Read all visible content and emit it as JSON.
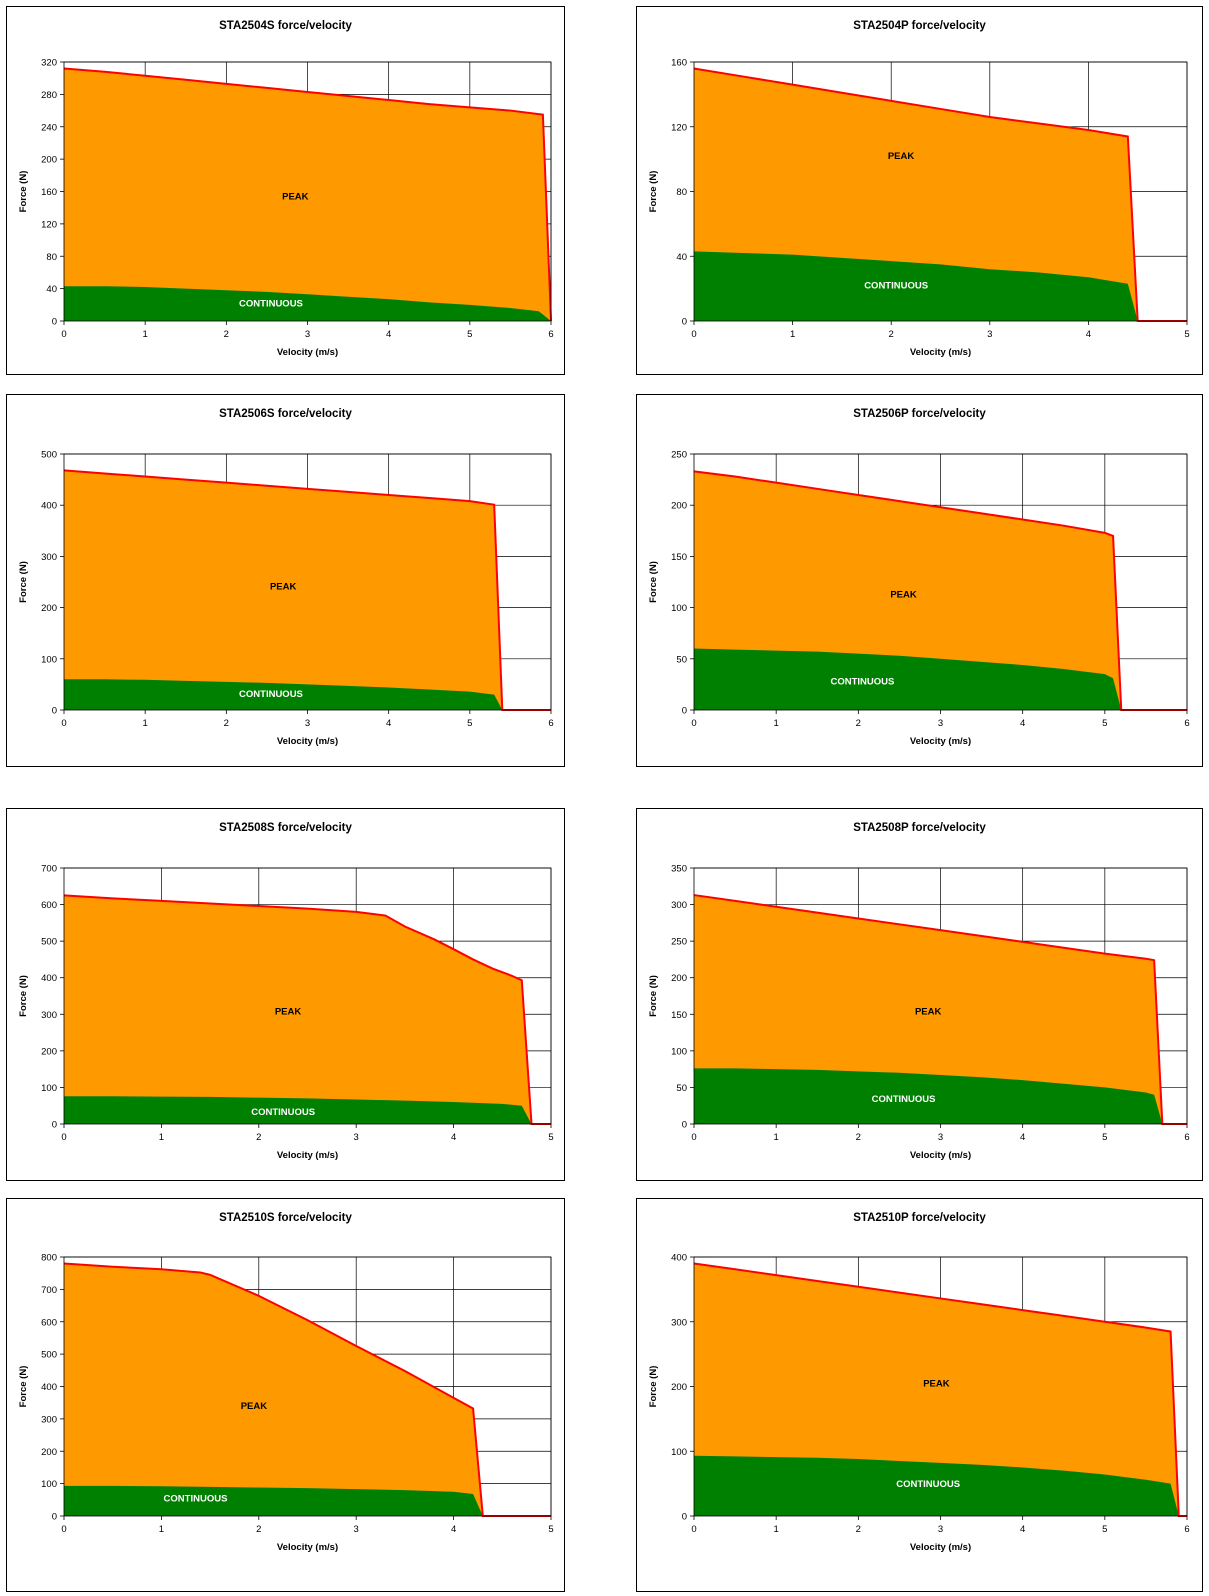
{
  "colors": {
    "peak": "#ff9900",
    "continuous": "#008000",
    "outline": "#ff0000",
    "grid": "#000000"
  },
  "charts": [
    {
      "chart_data": {
        "type": "area",
        "title": "STA2504S force/velocity",
        "xlabel": "Velocity (m/s)",
        "ylabel": "Force (N)",
        "xlim": [
          0,
          6
        ],
        "ylim": [
          0,
          320
        ],
        "xticks": [
          0,
          1,
          2,
          3,
          4,
          5,
          6
        ],
        "yticks": [
          0,
          40,
          80,
          120,
          160,
          200,
          240,
          280,
          320
        ],
        "region_labels": {
          "peak": "PEAK",
          "continuous": "CONTINUOUS"
        },
        "series": [
          {
            "name": "PEAK",
            "x": [
              0,
              0.5,
              1,
              1.5,
              2,
              2.5,
              3,
              3.5,
              4,
              4.5,
              5,
              5.5,
              5.9,
              6
            ],
            "y": [
              312,
              308,
              303,
              298,
              293,
              288,
              283,
              278,
              273,
              268,
              264,
              260,
              255,
              0
            ]
          },
          {
            "name": "CONTINUOUS",
            "x": [
              0,
              0.5,
              1,
              1.5,
              2,
              2.5,
              3,
              3.5,
              4,
              4.5,
              5,
              5.5,
              5.85,
              6
            ],
            "y": [
              43,
              43,
              42,
              40,
              38,
              36,
              33,
              30,
              27,
              23,
              20,
              16,
              12,
              0
            ]
          }
        ]
      }
    },
    {
      "chart_data": {
        "type": "area",
        "title": "STA2504P force/velocity",
        "xlabel": "Velocity (m/s)",
        "ylabel": "Force (N)",
        "xlim": [
          0,
          5
        ],
        "ylim": [
          0,
          160
        ],
        "xticks": [
          0,
          1,
          2,
          3,
          4,
          5
        ],
        "yticks": [
          0,
          40,
          80,
          120,
          160
        ],
        "region_labels": {
          "peak": "PEAK",
          "continuous": "CONTINUOUS"
        },
        "series": [
          {
            "name": "PEAK",
            "x": [
              0,
              0.5,
              1,
              1.5,
              2,
              2.5,
              3,
              3.5,
              4,
              4.4,
              4.5,
              5
            ],
            "y": [
              156,
              151,
              146,
              141,
              136,
              131,
              126,
              122,
              118,
              114,
              0,
              0
            ]
          },
          {
            "name": "CONTINUOUS",
            "x": [
              0,
              0.5,
              1,
              1.5,
              2,
              2.5,
              3,
              3.5,
              4,
              4.4,
              4.5,
              5
            ],
            "y": [
              43,
              42,
              41,
              39,
              37,
              35,
              32,
              30,
              27,
              23,
              0,
              0
            ]
          }
        ]
      }
    },
    {
      "chart_data": {
        "type": "area",
        "title": "STA2506S force/velocity",
        "xlabel": "Velocity (m/s)",
        "ylabel": "Force (N)",
        "xlim": [
          0,
          6
        ],
        "ylim": [
          0,
          500
        ],
        "xticks": [
          0,
          1,
          2,
          3,
          4,
          5,
          6
        ],
        "yticks": [
          0,
          100,
          200,
          300,
          400,
          500
        ],
        "region_labels": {
          "peak": "PEAK",
          "continuous": "CONTINUOUS"
        },
        "series": [
          {
            "name": "PEAK",
            "x": [
              0,
              0.5,
              1,
              1.5,
              2,
              2.5,
              3,
              3.5,
              4,
              4.5,
              5,
              5.3,
              5.4,
              6
            ],
            "y": [
              468,
              462,
              456,
              450,
              444,
              438,
              432,
              426,
              420,
              414,
              408,
              401,
              0,
              0
            ]
          },
          {
            "name": "CONTINUOUS",
            "x": [
              0,
              0.5,
              1,
              1.5,
              2,
              2.5,
              3,
              3.5,
              4,
              4.5,
              5,
              5.3,
              5.4,
              6
            ],
            "y": [
              60,
              60,
              59,
              57,
              55,
              53,
              50,
              47,
              44,
              40,
              36,
              30,
              0,
              0
            ]
          }
        ]
      }
    },
    {
      "chart_data": {
        "type": "area",
        "title": "STA2506P force/velocity",
        "xlabel": "Velocity (m/s)",
        "ylabel": "Force (N)",
        "xlim": [
          0,
          6
        ],
        "ylim": [
          0,
          250
        ],
        "xticks": [
          0,
          1,
          2,
          3,
          4,
          5,
          6
        ],
        "yticks": [
          0,
          50,
          100,
          150,
          200,
          250
        ],
        "region_labels": {
          "peak": "PEAK",
          "continuous": "CONTINUOUS"
        },
        "series": [
          {
            "name": "PEAK",
            "x": [
              0,
              0.5,
              1,
              1.5,
              2,
              2.5,
              3,
              3.5,
              4,
              4.5,
              5,
              5.1,
              5.2,
              6
            ],
            "y": [
              233,
              228,
              222,
              216,
              210,
              204,
              198,
              192,
              186,
              180,
              173,
              170,
              0,
              0
            ]
          },
          {
            "name": "CONTINUOUS",
            "x": [
              0,
              0.5,
              1,
              1.5,
              2,
              2.5,
              3,
              3.5,
              4,
              4.5,
              5,
              5.1,
              5.2,
              6
            ],
            "y": [
              60,
              59,
              58,
              57,
              55,
              53,
              50,
              47,
              44,
              40,
              35,
              31,
              0,
              0
            ]
          }
        ]
      }
    },
    {
      "chart_data": {
        "type": "area",
        "title": "STA2508S force/velocity",
        "xlabel": "Velocity (m/s)",
        "ylabel": "Force (N)",
        "xlim": [
          0,
          5
        ],
        "ylim": [
          0,
          700
        ],
        "xticks": [
          0,
          1,
          2,
          3,
          4,
          5
        ],
        "yticks": [
          0,
          100,
          200,
          300,
          400,
          500,
          600,
          700
        ],
        "region_labels": {
          "peak": "PEAK",
          "continuous": "CONTINUOUS"
        },
        "series": [
          {
            "name": "PEAK",
            "x": [
              0,
              0.5,
              1,
              1.5,
              2,
              2.5,
              3,
              3.3,
              3.5,
              3.8,
              4,
              4.2,
              4.4,
              4.6,
              4.7,
              4.8,
              5
            ],
            "y": [
              625,
              617,
              610,
              603,
              596,
              589,
              580,
              570,
              540,
              505,
              478,
              450,
              425,
              405,
              393,
              0,
              0
            ]
          },
          {
            "name": "CONTINUOUS",
            "x": [
              0,
              0.5,
              1,
              1.5,
              2,
              2.5,
              3,
              3.5,
              4,
              4.5,
              4.7,
              4.8,
              5
            ],
            "y": [
              76,
              76,
              75,
              74,
              72,
              70,
              67,
              64,
              60,
              55,
              50,
              0,
              0
            ]
          }
        ]
      }
    },
    {
      "chart_data": {
        "type": "area",
        "title": "STA2508P force/velocity",
        "xlabel": "Velocity (m/s)",
        "ylabel": "Force (N)",
        "xlim": [
          0,
          6
        ],
        "ylim": [
          0,
          350
        ],
        "xticks": [
          0,
          1,
          2,
          3,
          4,
          5,
          6
        ],
        "yticks": [
          0,
          50,
          100,
          150,
          200,
          250,
          300,
          350
        ],
        "region_labels": {
          "peak": "PEAK",
          "continuous": "CONTINUOUS"
        },
        "series": [
          {
            "name": "PEAK",
            "x": [
              0,
              0.5,
              1,
              1.5,
              2,
              2.5,
              3,
              3.5,
              4,
              4.5,
              5,
              5.5,
              5.6,
              5.7,
              6
            ],
            "y": [
              313,
              305,
              297,
              289,
              281,
              273,
              265,
              257,
              249,
              241,
              233,
              226,
              224,
              0,
              0
            ]
          },
          {
            "name": "CONTINUOUS",
            "x": [
              0,
              0.5,
              1,
              1.5,
              2,
              2.5,
              3,
              3.5,
              4,
              4.5,
              5,
              5.5,
              5.6,
              5.7,
              6
            ],
            "y": [
              76,
              76,
              75,
              74,
              72,
              70,
              67,
              64,
              60,
              55,
              50,
              43,
              40,
              0,
              0
            ]
          }
        ]
      }
    },
    {
      "chart_data": {
        "type": "area",
        "title": "STA2510S force/velocity",
        "xlabel": "Velocity (m/s)",
        "ylabel": "Force (N)",
        "xlim": [
          0,
          5
        ],
        "ylim": [
          0,
          800
        ],
        "xticks": [
          0,
          1,
          2,
          3,
          4,
          5
        ],
        "yticks": [
          0,
          100,
          200,
          300,
          400,
          500,
          600,
          700,
          800
        ],
        "region_labels": {
          "peak": "PEAK",
          "continuous": "CONTINUOUS"
        },
        "series": [
          {
            "name": "PEAK",
            "x": [
              0,
              0.5,
              1,
              1.4,
              1.5,
              2,
              2.5,
              3,
              3.5,
              4,
              4.2,
              4.3,
              5
            ],
            "y": [
              780,
              770,
              762,
              752,
              745,
              680,
              605,
              525,
              448,
              365,
              332,
              0,
              0
            ]
          },
          {
            "name": "CONTINUOUS",
            "x": [
              0,
              0.5,
              1,
              1.5,
              2,
              2.5,
              3,
              3.5,
              4,
              4.2,
              4.3,
              5
            ],
            "y": [
              93,
              93,
              92,
              90,
              88,
              86,
              83,
              80,
              75,
              68,
              0,
              0
            ]
          }
        ]
      }
    },
    {
      "chart_data": {
        "type": "area",
        "title": "STA2510P force/velocity",
        "xlabel": "Velocity (m/s)",
        "ylabel": "Force (N)",
        "xlim": [
          0,
          6
        ],
        "ylim": [
          0,
          400
        ],
        "xticks": [
          0,
          1,
          2,
          3,
          4,
          5,
          6
        ],
        "yticks": [
          0,
          100,
          200,
          300,
          400
        ],
        "region_labels": {
          "peak": "PEAK",
          "continuous": "CONTINUOUS"
        },
        "series": [
          {
            "name": "PEAK",
            "x": [
              0,
              0.5,
              1,
              1.5,
              2,
              2.5,
              3,
              3.5,
              4,
              4.5,
              5,
              5.5,
              5.8,
              5.9,
              6
            ],
            "y": [
              390,
              381,
              372,
              363,
              354,
              345,
              336,
              327,
              318,
              309,
              300,
              291,
              285,
              0,
              0
            ]
          },
          {
            "name": "CONTINUOUS",
            "x": [
              0,
              0.5,
              1,
              1.5,
              2,
              2.5,
              3,
              3.5,
              4,
              4.5,
              5,
              5.5,
              5.8,
              5.9,
              6
            ],
            "y": [
              93,
              92,
              91,
              90,
              88,
              85,
              82,
              79,
              75,
              70,
              64,
              56,
              50,
              0,
              0
            ]
          }
        ]
      }
    }
  ]
}
